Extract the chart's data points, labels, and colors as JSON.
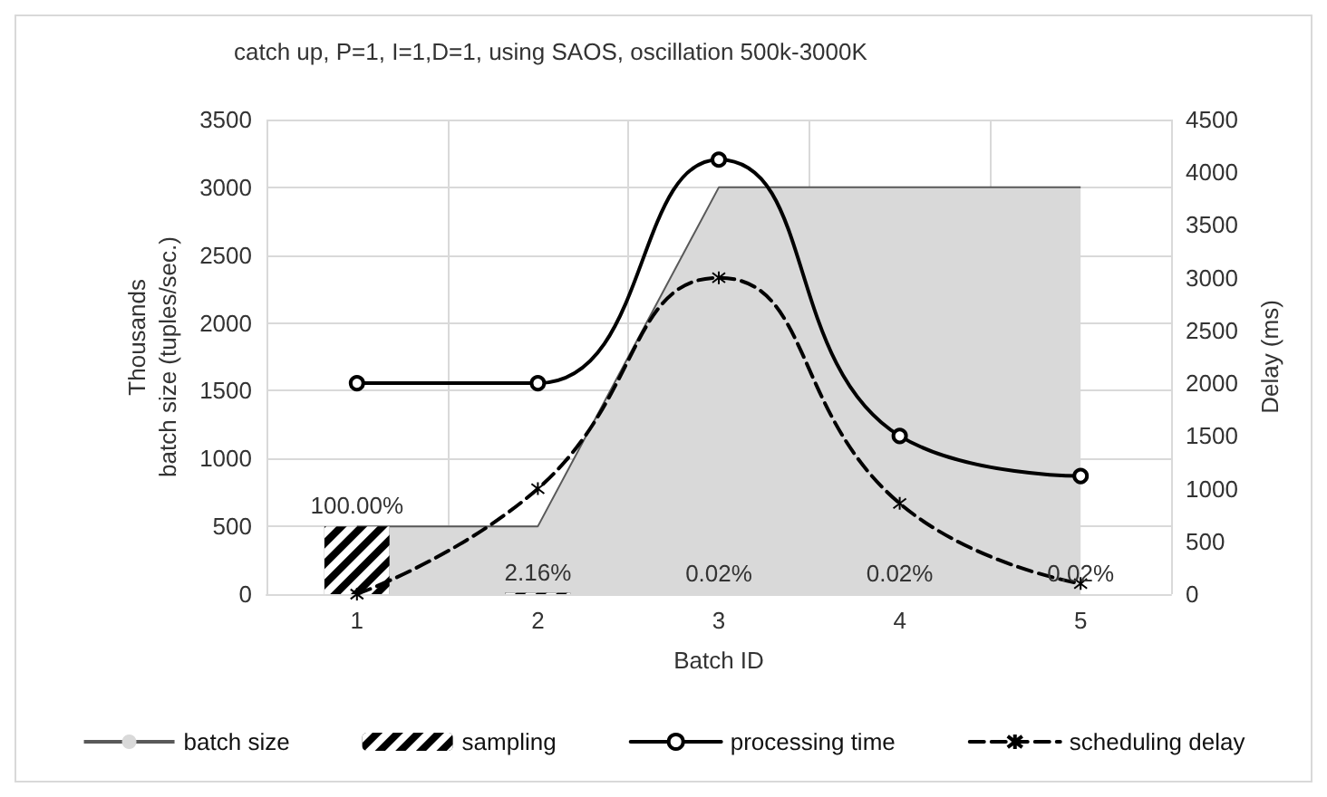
{
  "chart_data": {
    "type": "area",
    "title": "catch up, P=1, I=1,D=1, using SAOS, oscillation 500k-3000K",
    "xlabel": "Batch ID",
    "ylabel": "batch size (tuples/sec.)",
    "y2label": "Delay (ms)",
    "annotations": [
      "Thousands",
      {
        "text": "100.00%",
        "x": "1",
        "y": 500
      },
      {
        "text": "2.16%",
        "x": "2",
        "y": 10
      },
      {
        "text": "0.02%",
        "x": "3",
        "y": 0
      },
      {
        "text": "0.02%",
        "x": "4",
        "y": 0
      },
      {
        "text": "0.02%",
        "x": "5",
        "y": 0
      }
    ],
    "categories": [
      "1",
      "2",
      "3",
      "4",
      "5"
    ],
    "series": [
      {
        "name": "batch size",
        "color": "#d9d9d9",
        "values": [
          500,
          500,
          3000,
          3000,
          3000
        ]
      },
      {
        "name": "sampling",
        "type": "bar",
        "color": "#000000",
        "values": [
          500,
          10,
          0,
          0,
          0
        ]
      },
      {
        "name": "processing time",
        "type": "line",
        "axis": "y2",
        "color": "#000000",
        "marker": "circle",
        "line_style": "solid",
        "values": [
          2000,
          2000,
          4120,
          1500,
          1120
        ]
      },
      {
        "name": "scheduling delay",
        "type": "line",
        "axis": "y2",
        "color": "#000000",
        "marker": "cross",
        "line_style": "dashed",
        "values": [
          0,
          1000,
          3000,
          860,
          100
        ]
      }
    ],
    "ylim": [
      0,
      3500
    ],
    "yticks": [
      0,
      500,
      1000,
      1500,
      2000,
      2500,
      3000,
      3500
    ],
    "y2lim": [
      0,
      4500
    ],
    "y2ticks": [
      0,
      500,
      1000,
      1500,
      2000,
      2500,
      3000,
      3500,
      4000,
      4500
    ],
    "grid": true,
    "legend": "bottom"
  }
}
